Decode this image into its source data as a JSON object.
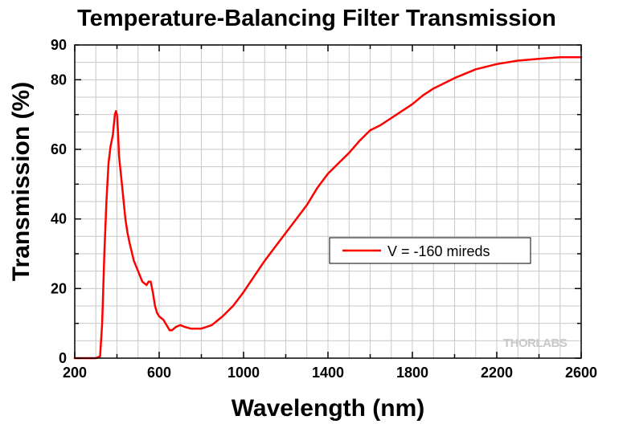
{
  "chart_data": {
    "type": "line",
    "title": "Temperature-Balancing Filter Transmission",
    "xlabel": "Wavelength (nm)",
    "ylabel": "Transmission (%)",
    "xlim": [
      200,
      2600
    ],
    "ylim": [
      0,
      90
    ],
    "x_ticks": [
      "200",
      "600",
      "1000",
      "1400",
      "1800",
      "2200",
      "2600"
    ],
    "y_ticks": [
      "0",
      "20",
      "40",
      "60",
      "80",
      "90"
    ],
    "grid": true,
    "legend": "center-right",
    "series": [
      {
        "name": "V = -160 mireds",
        "color": "#ff0000",
        "x": [
          200,
          300,
          320,
          330,
          340,
          350,
          360,
          370,
          380,
          390,
          395,
          400,
          405,
          410,
          420,
          430,
          440,
          450,
          460,
          480,
          500,
          520,
          540,
          550,
          560,
          570,
          580,
          590,
          600,
          620,
          640,
          650,
          660,
          680,
          700,
          720,
          750,
          780,
          800,
          850,
          900,
          950,
          1000,
          1050,
          1100,
          1150,
          1200,
          1250,
          1300,
          1350,
          1400,
          1450,
          1500,
          1550,
          1600,
          1650,
          1700,
          1750,
          1800,
          1850,
          1900,
          1950,
          2000,
          2100,
          2200,
          2300,
          2400,
          2500,
          2600
        ],
        "values": [
          0,
          0,
          0.5,
          10,
          30,
          45,
          56,
          61,
          64,
          70,
          71,
          70,
          65,
          58,
          52,
          46,
          40,
          36,
          33,
          28,
          25,
          22,
          21,
          22,
          22,
          19,
          15,
          13,
          12,
          11,
          9,
          8,
          8,
          9,
          9.5,
          9,
          8.5,
          8.5,
          8.5,
          9.5,
          12,
          15,
          19,
          23.5,
          28,
          32,
          36,
          40,
          44,
          49,
          53,
          56,
          59,
          62.5,
          65.5,
          67,
          69,
          71,
          73,
          75.5,
          77.5,
          79,
          80.5,
          83,
          84.5,
          85.5,
          86,
          86.5,
          86.5
        ]
      }
    ]
  },
  "logo": "THORLABS"
}
